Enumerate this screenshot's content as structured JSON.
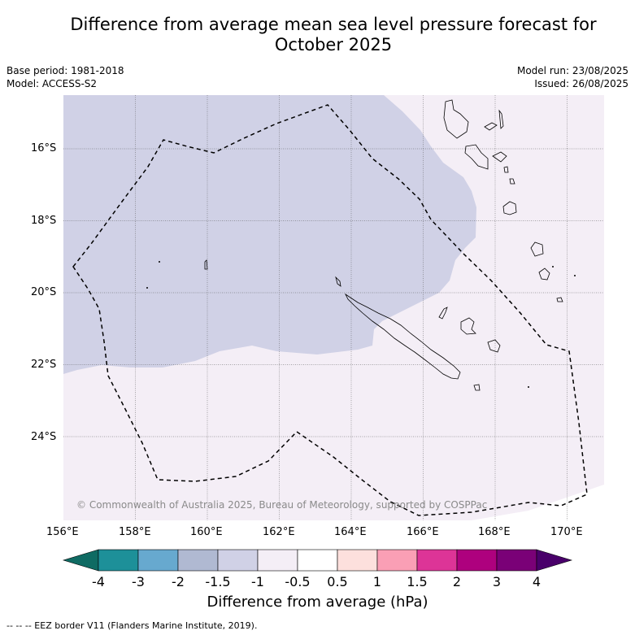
{
  "title_line1": "Difference from average mean sea level pressure forecast for",
  "title_line2": "October 2025",
  "base_period": "Base period: 1981-2018",
  "model": "Model: ACCESS-S2",
  "model_run": "Model run: 23/08/2025",
  "issued": "Issued: 26/08/2025",
  "copyright": "© Commonwealth of Australia 2025, Bureau of Meteorology, supported by COSPPac",
  "lat_labels": [
    "16°S",
    "18°S",
    "20°S",
    "22°S",
    "24°S"
  ],
  "lon_labels": [
    "156°E",
    "158°E",
    "160°E",
    "162°E",
    "164°E",
    "166°E",
    "168°E",
    "170°E"
  ],
  "colorbar": {
    "ticks": [
      "-4",
      "-3",
      "-2",
      "-1.5",
      "-1",
      "-0.5",
      "0.5",
      "1",
      "1.5",
      "2",
      "3",
      "4"
    ],
    "colors": [
      "#0f6b63",
      "#1d9099",
      "#67a9cf",
      "#b0b9d2",
      "#d0d1e6",
      "#f4eef6",
      "#ffffff",
      "#fde0dd",
      "#fa9fb5",
      "#dd3497",
      "#ae017e",
      "#7a0177",
      "#49006a"
    ],
    "title": "Difference from average (hPa)"
  },
  "field": {
    "negative_color": "#d0d1e6",
    "neutral_color": "#f4eef6"
  },
  "legend_text": "--  --  -- EEZ border V11 (Flanders Marine Institute, 2019)."
}
